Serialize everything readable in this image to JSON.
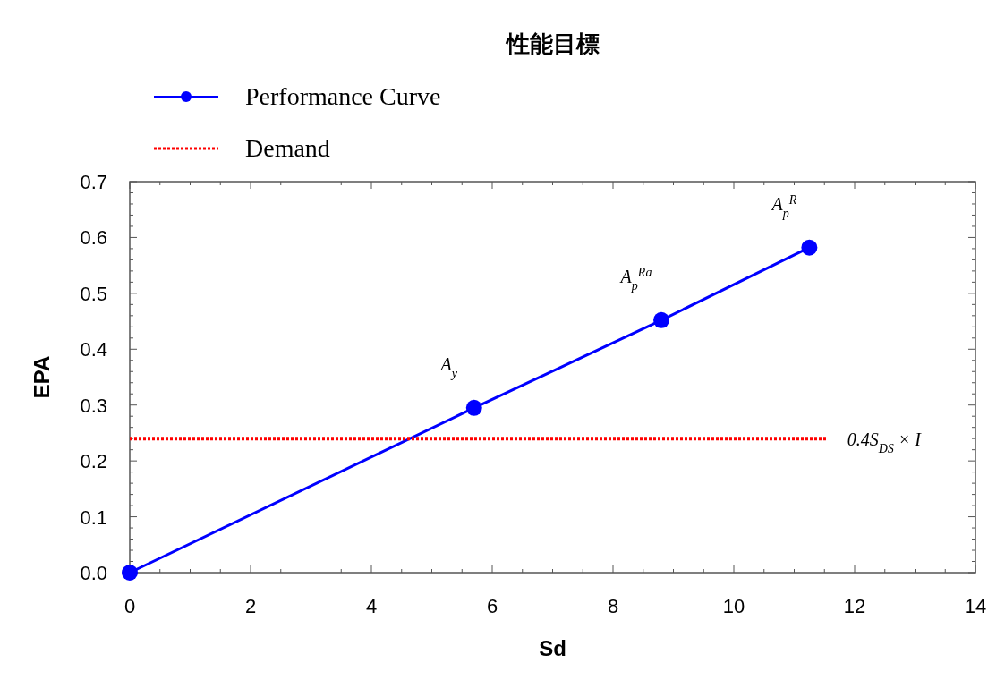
{
  "chart_data": {
    "type": "line",
    "title": "性能目標",
    "xlabel": "Sd",
    "ylabel": "EPA",
    "xlim": [
      0,
      14
    ],
    "xticks": [
      0,
      2,
      4,
      6,
      8,
      10,
      12,
      14
    ],
    "ylim": [
      0,
      0.7
    ],
    "yticks": [
      {
        "value": 0,
        "label": "0.0"
      },
      {
        "value": 0.1,
        "label": "0.1"
      },
      {
        "value": 0.2,
        "label": "0.2"
      },
      {
        "value": 0.3,
        "label": "0.3"
      },
      {
        "value": 0.4,
        "label": "0.4"
      },
      {
        "value": 0.5,
        "label": "0.5"
      },
      {
        "value": 0.6,
        "label": "0.6"
      },
      {
        "value": 0.7,
        "label": "0.7"
      }
    ],
    "series": [
      {
        "name": "Performance Curve",
        "color": "#0000ff",
        "x": [
          0,
          5.7,
          8.8,
          11.25
        ],
        "values": [
          0,
          0.295,
          0.452,
          0.582
        ],
        "marker": "circle",
        "line_style": "solid"
      },
      {
        "name": "Demand",
        "color": "#ff0000",
        "x": [
          0,
          11.55
        ],
        "values": [
          0.24,
          0.24
        ],
        "marker": "none",
        "line_style": "dotted"
      }
    ],
    "annotations": [
      {
        "text": "A$_{y}$",
        "x": 5.7,
        "y": 0.295
      },
      {
        "text": "A$_{p}$$^{Ra}$",
        "x": 8.8,
        "y": 0.452
      },
      {
        "text": "A$_{p}$$^{R}$",
        "x": 11.25,
        "y": 0.582
      },
      {
        "text": "0.4S$_{DS}$ × I",
        "x": 11.55,
        "y": 0.24
      }
    ],
    "legend": "top left",
    "grid": false
  }
}
